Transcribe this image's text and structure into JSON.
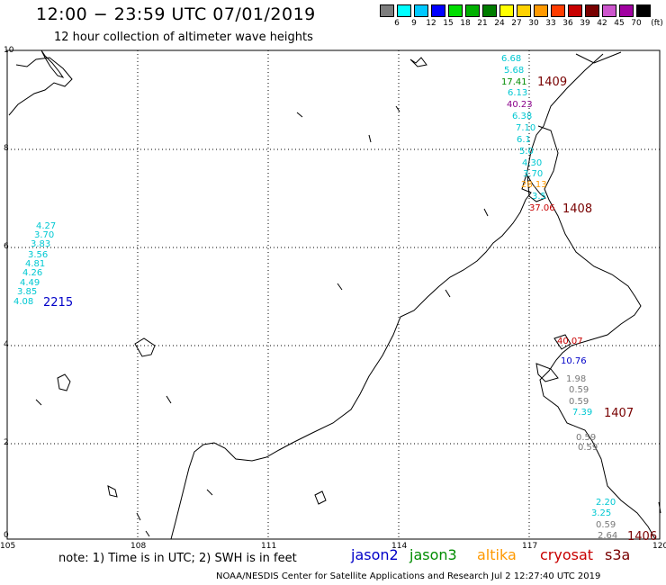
{
  "header": {
    "title": "12:00 − 23:59 UTC 07/01/2019",
    "subtitle": "12 hour collection of altimeter wave heights"
  },
  "colors": {
    "jason2": "#0000c8",
    "jason3": "#008c00",
    "altika": "#ff9900",
    "cryosat": "#c80000",
    "s3a": "#780000",
    "swh_cyan": "#00c8d2",
    "swh_gray": "#787878",
    "swh_purple": "#8a008a",
    "swh_green": "#008c00"
  },
  "color_scale": {
    "unit": "(ft)",
    "swatches": [
      {
        "label": "3",
        "color": "#7d7d7d"
      },
      {
        "label": "6",
        "color": "#00ffff"
      },
      {
        "label": "9",
        "color": "#00c8ff"
      },
      {
        "label": "12",
        "color": "#0000ff"
      },
      {
        "label": "15",
        "color": "#00dd00"
      },
      {
        "label": "18",
        "color": "#00b000"
      },
      {
        "label": "21",
        "color": "#007d00"
      },
      {
        "label": "24",
        "color": "#ffff00"
      },
      {
        "label": "27",
        "color": "#ffd200"
      },
      {
        "label": "30",
        "color": "#ff9900"
      },
      {
        "label": "33",
        "color": "#ff3c00"
      },
      {
        "label": "36",
        "color": "#c80000"
      },
      {
        "label": "39",
        "color": "#780000"
      },
      {
        "label": "42",
        "color": "#cc55cc"
      },
      {
        "label": "45",
        "color": "#a000a0"
      },
      {
        "label": "70",
        "color": "#000000"
      }
    ]
  },
  "axes": {
    "lon_labels": [
      "105",
      "108",
      "111",
      "114",
      "117",
      "120"
    ],
    "lat_labels": [
      "10",
      "8",
      "6",
      "4",
      "2",
      "0"
    ]
  },
  "tracks": [
    {
      "time": "2215",
      "color": "jason2",
      "values": [
        {
          "t": "4.27",
          "c": "swh_cyan"
        },
        {
          "t": "3.70",
          "c": "swh_cyan"
        },
        {
          "t": "3.83",
          "c": "swh_cyan"
        },
        {
          "t": "3.56",
          "c": "swh_cyan"
        },
        {
          "t": "4.81",
          "c": "swh_cyan"
        },
        {
          "t": "4.26",
          "c": "swh_cyan"
        },
        {
          "t": "4.49",
          "c": "swh_cyan"
        },
        {
          "t": "3.85",
          "c": "swh_cyan"
        },
        {
          "t": "4.08",
          "c": "swh_cyan"
        }
      ]
    },
    {
      "time": "1409",
      "color": "s3a",
      "values": [
        {
          "t": "6.68",
          "c": "swh_cyan"
        },
        {
          "t": "5.68",
          "c": "swh_cyan"
        },
        {
          "t": "17.41",
          "c": "swh_green"
        },
        {
          "t": "6.13",
          "c": "swh_cyan"
        },
        {
          "t": "40.23",
          "c": "swh_purple"
        },
        {
          "t": "6.38",
          "c": "swh_cyan"
        },
        {
          "t": "7.10",
          "c": "swh_cyan"
        },
        {
          "t": "6.1",
          "c": "swh_cyan"
        },
        {
          "t": "5.0",
          "c": "swh_cyan"
        },
        {
          "t": "4.30",
          "c": "swh_cyan"
        },
        {
          "t": "3.70",
          "c": "swh_cyan"
        },
        {
          "t": "28.13",
          "c": "altika"
        },
        {
          "t": "3.5",
          "c": "swh_cyan"
        }
      ]
    },
    {
      "time": "1408",
      "color": "s3a",
      "values": [
        {
          "t": "37.06",
          "c": "cryosat"
        }
      ]
    },
    {
      "time": "1407",
      "color": "s3a",
      "values": [
        {
          "t": "40.07",
          "c": "cryosat"
        },
        {
          "t": "10.76",
          "c": "jason2"
        },
        {
          "t": "1.98",
          "c": "swh_gray"
        },
        {
          "t": "0.59",
          "c": "swh_gray"
        },
        {
          "t": "0.59",
          "c": "swh_gray"
        },
        {
          "t": "7.39",
          "c": "swh_cyan"
        },
        {
          "t": "0.59",
          "c": "swh_gray"
        },
        {
          "t": "0.59",
          "c": "swh_gray"
        }
      ]
    },
    {
      "time": "1406",
      "color": "s3a",
      "values": [
        {
          "t": "2.20",
          "c": "swh_cyan"
        },
        {
          "t": "3.25",
          "c": "swh_cyan"
        },
        {
          "t": "0.59",
          "c": "swh_gray"
        },
        {
          "t": "2.64",
          "c": "swh_gray"
        }
      ]
    }
  ],
  "footer": {
    "note": "note:  1) Time is in UTC; 2) SWH is in feet",
    "legend": [
      "jason2",
      "jason3",
      "altika",
      "cryosat",
      "s3a"
    ],
    "credit": "NOAA/NESDIS Center for Satellite Applications and Research    Jul  2 12:27:40 UTC 2019"
  }
}
